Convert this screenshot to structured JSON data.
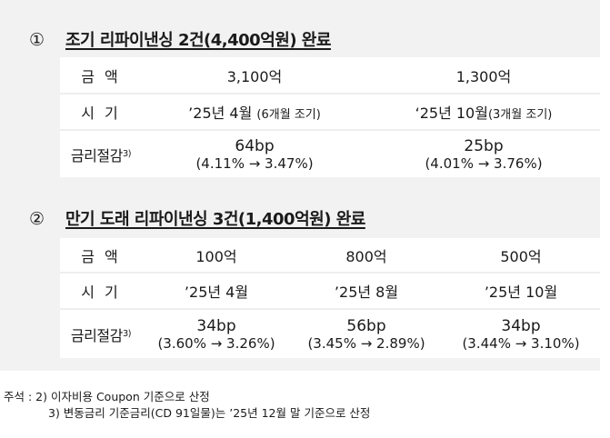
{
  "sections": [
    {
      "num": "①",
      "title": "조기 리파이낸싱 2건(4,400억원) 완료",
      "row_labels": {
        "amount": "금 액",
        "timing": "시 기",
        "saving": "금리절감",
        "saving_sup": "3)"
      },
      "columns": [
        {
          "amount": "3,100억",
          "timing": "’25년 4월",
          "timing_note": "(6개월 조기)",
          "bp": "64bp",
          "rates": "(4.11% → 3.47%)"
        },
        {
          "amount": "1,300억",
          "timing": "‘25년 10월",
          "timing_note": "(3개월 조기)",
          "bp": "25bp",
          "rates": "(4.01% → 3.76%)"
        }
      ]
    },
    {
      "num": "②",
      "title": "만기 도래 리파이낸싱 3건(1,400억원) 완료",
      "row_labels": {
        "amount": "금 액",
        "timing": "시 기",
        "saving": "금리절감",
        "saving_sup": "3)"
      },
      "columns": [
        {
          "amount": "100억",
          "timing": "’25년 4월",
          "bp": "34bp",
          "rates": "(3.60% → 3.26%)"
        },
        {
          "amount": "800억",
          "timing": "’25년 8월",
          "bp": "56bp",
          "rates": "(3.45% → 2.89%)"
        },
        {
          "amount": "500억",
          "timing": "’25년 10월",
          "bp": "34bp",
          "rates": "(3.44% → 3.10%)"
        }
      ]
    }
  ],
  "notes": {
    "prefix": "주석 : ",
    "note2": "2) 이자비용 Coupon 기준으로 산정",
    "note3": "3) 변동금리 기준금리(CD 91일물)는 ’25년 12월 말 기준으로 산정"
  }
}
